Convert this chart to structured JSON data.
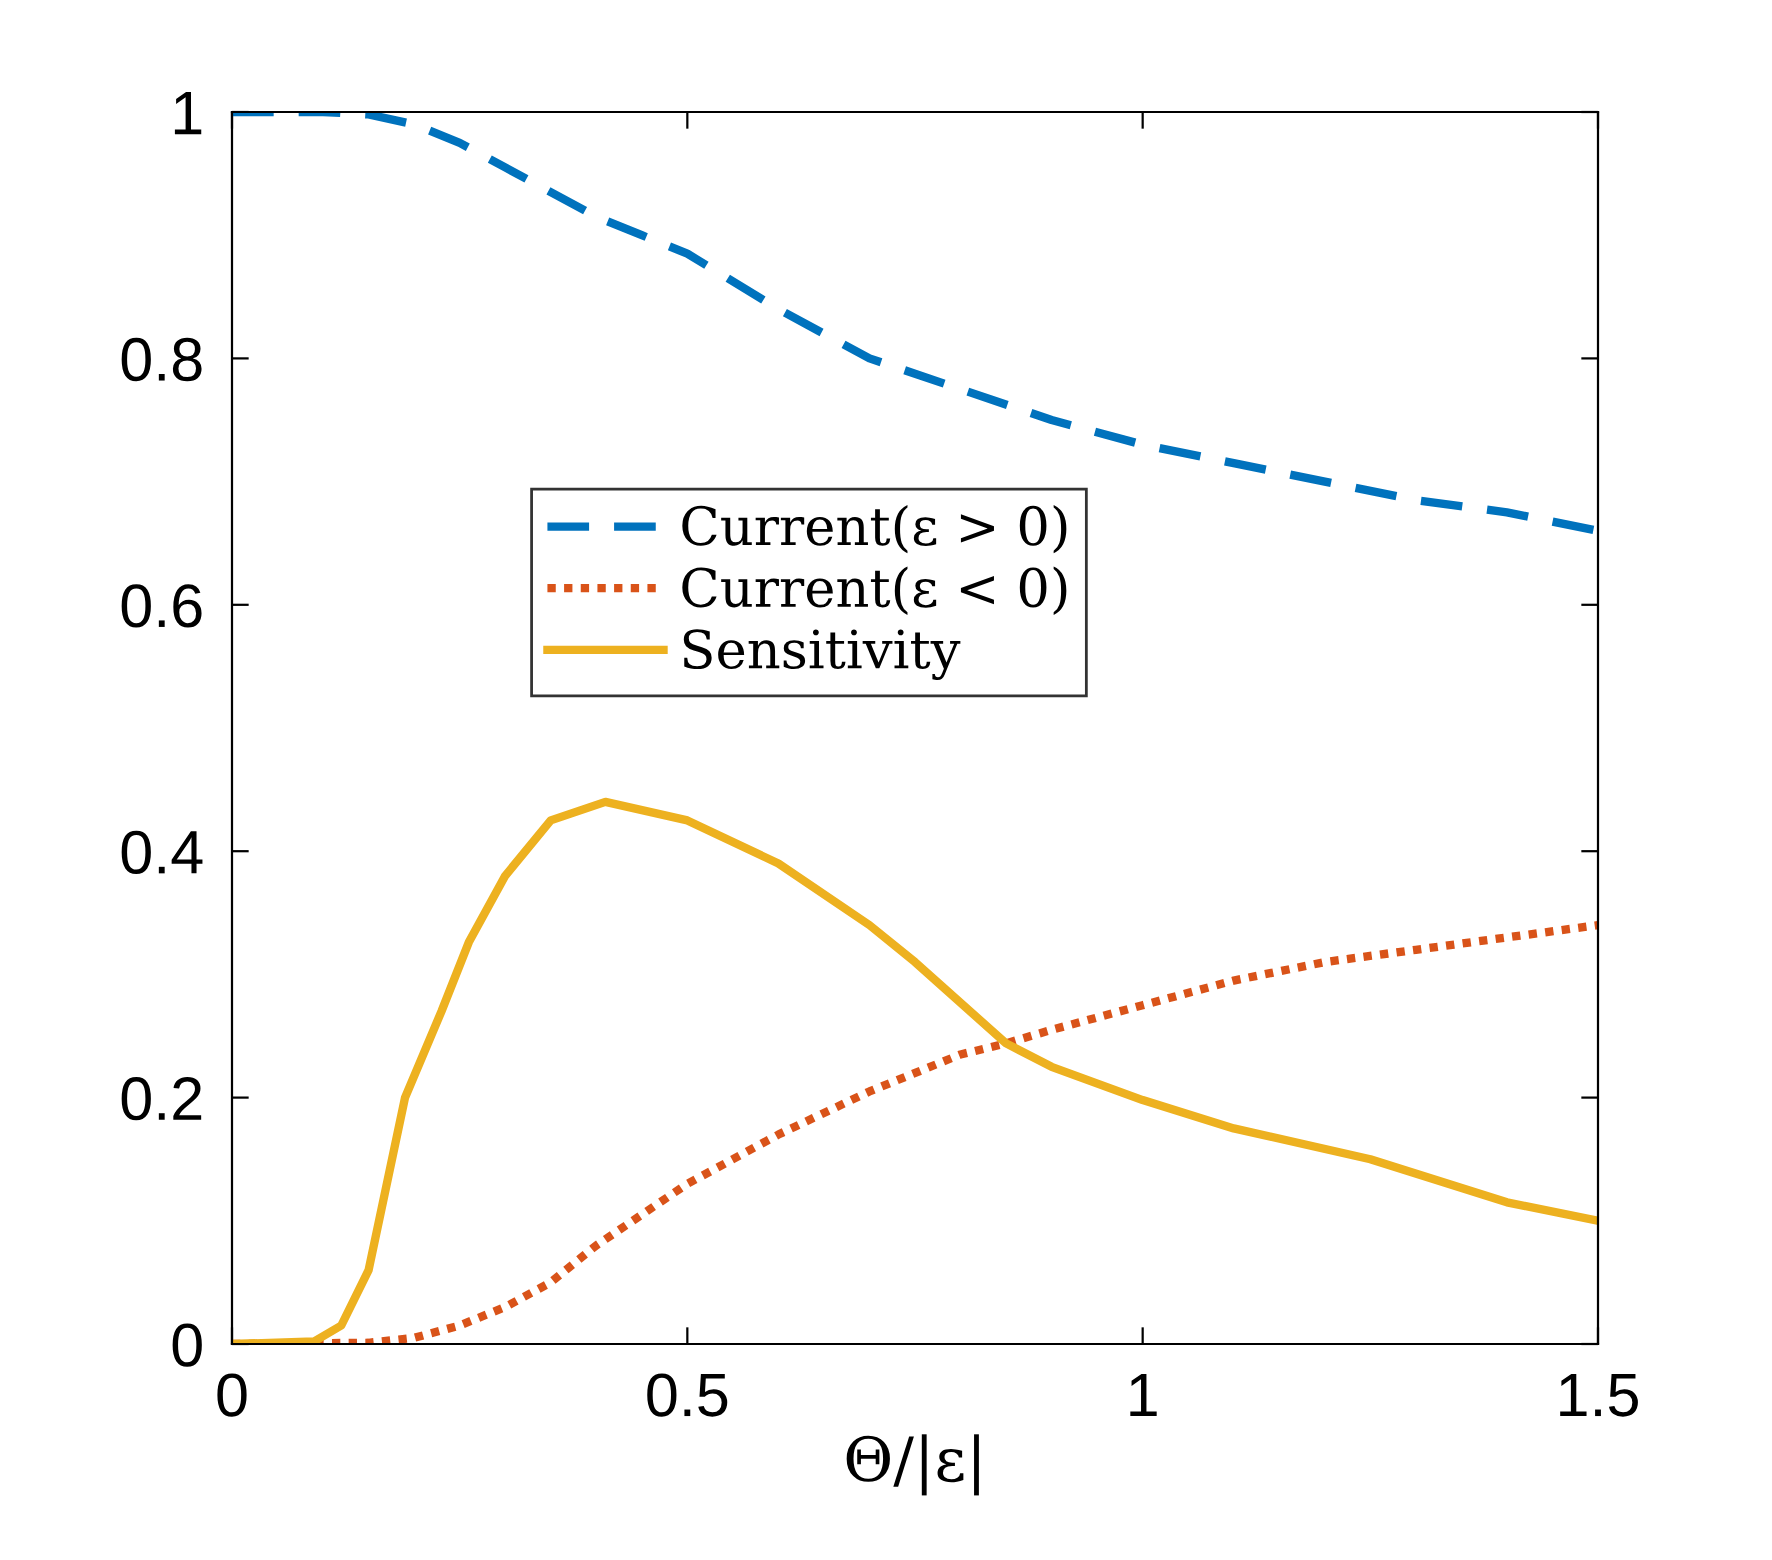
{
  "chart_data": {
    "type": "line",
    "xlabel": "Θ/|ε|",
    "xlim": [
      0,
      1.5
    ],
    "ylim": [
      0,
      1
    ],
    "xticks": [
      0,
      0.5,
      1,
      1.5
    ],
    "yticks": [
      0,
      0.2,
      0.4,
      0.6,
      0.8,
      1
    ],
    "grid": false,
    "legend": "left",
    "marker": "none",
    "series": [
      {
        "name": "Current(ε > 0)",
        "color": "#0072bd",
        "line_style": "dashed",
        "x": [
          0,
          0.1,
          0.15,
          0.2,
          0.25,
          0.3,
          0.35,
          0.4,
          0.45,
          0.5,
          0.6,
          0.7,
          0.8,
          0.9,
          1.0,
          1.1,
          1.2,
          1.3,
          1.4,
          1.5
        ],
        "values": [
          1,
          1,
          0.998,
          0.99,
          0.975,
          0.955,
          0.935,
          0.915,
          0.9,
          0.885,
          0.84,
          0.8,
          0.775,
          0.75,
          0.73,
          0.715,
          0.7,
          0.685,
          0.675,
          0.66
        ]
      },
      {
        "name": "Current(ε < 0)",
        "color": "#d95319",
        "line_style": "dotted",
        "x": [
          0,
          0.15,
          0.2,
          0.25,
          0.3,
          0.35,
          0.4,
          0.5,
          0.6,
          0.7,
          0.8,
          0.85,
          0.9,
          1.0,
          1.1,
          1.2,
          1.3,
          1.4,
          1.5
        ],
        "values": [
          0,
          0.001,
          0.005,
          0.015,
          0.03,
          0.05,
          0.08,
          0.13,
          0.17,
          0.205,
          0.235,
          0.244,
          0.255,
          0.275,
          0.295,
          0.31,
          0.32,
          0.33,
          0.34
        ]
      },
      {
        "name": "Sensitivity",
        "color": "#edb120",
        "line_style": "solid",
        "x": [
          0,
          0.09,
          0.12,
          0.15,
          0.19,
          0.23,
          0.26,
          0.3,
          0.35,
          0.41,
          0.5,
          0.6,
          0.7,
          0.75,
          0.85,
          0.9,
          1.0,
          1.1,
          1.25,
          1.4,
          1.5
        ],
        "values": [
          0,
          0.002,
          0.015,
          0.06,
          0.2,
          0.27,
          0.326,
          0.38,
          0.425,
          0.44,
          0.425,
          0.39,
          0.34,
          0.31,
          0.244,
          0.225,
          0.198,
          0.175,
          0.15,
          0.115,
          0.1
        ]
      }
    ]
  }
}
